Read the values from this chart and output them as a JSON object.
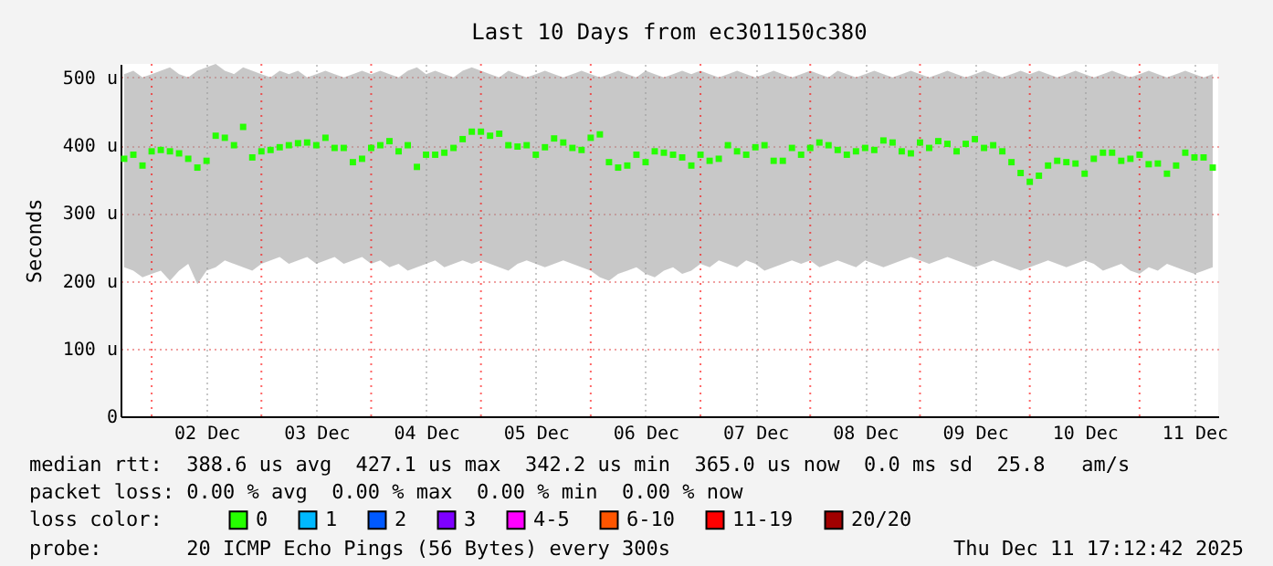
{
  "chart_data": {
    "type": "scatter",
    "title": "Last 10 Days from ec301150c380",
    "ylabel": "Seconds",
    "legend_title": "loss color:",
    "legend": "bottom",
    "marker": "square",
    "grid": true,
    "xlim": [
      "2025-12-01T17:12",
      "2025-12-11T17:12"
    ],
    "xticks": [
      {
        "value": "2025-12-02T12:00",
        "label": "02 Dec"
      },
      {
        "value": "2025-12-03T12:00",
        "label": "03 Dec"
      },
      {
        "value": "2025-12-04T12:00",
        "label": "04 Dec"
      },
      {
        "value": "2025-12-05T12:00",
        "label": "05 Dec"
      },
      {
        "value": "2025-12-06T12:00",
        "label": "06 Dec"
      },
      {
        "value": "2025-12-07T12:00",
        "label": "07 Dec"
      },
      {
        "value": "2025-12-08T12:00",
        "label": "08 Dec"
      },
      {
        "value": "2025-12-09T12:00",
        "label": "09 Dec"
      },
      {
        "value": "2025-12-10T12:00",
        "label": "10 Dec"
      },
      {
        "value": "2025-12-11T12:00",
        "label": "11 Dec"
      }
    ],
    "ylim": [
      0,
      520
    ],
    "yticks": [
      0,
      {
        "value": 100,
        "label": "100 u"
      },
      {
        "value": 200,
        "label": "200 u"
      },
      {
        "value": 300,
        "label": "300 u"
      },
      {
        "value": 400,
        "label": "400 u"
      },
      {
        "value": 500,
        "label": "500 u"
      }
    ],
    "x": [
      "2025-12-01T18:00",
      "2025-12-01T20:00",
      "2025-12-01T22:00",
      "2025-12-02T00:00",
      "2025-12-02T02:00",
      "2025-12-02T04:00",
      "2025-12-02T06:00",
      "2025-12-02T08:00",
      "2025-12-02T10:00",
      "2025-12-02T12:00",
      "2025-12-02T14:00",
      "2025-12-02T16:00",
      "2025-12-02T18:00",
      "2025-12-02T20:00",
      "2025-12-02T22:00",
      "2025-12-03T00:00",
      "2025-12-03T02:00",
      "2025-12-03T04:00",
      "2025-12-03T06:00",
      "2025-12-03T08:00",
      "2025-12-03T10:00",
      "2025-12-03T12:00",
      "2025-12-03T14:00",
      "2025-12-03T16:00",
      "2025-12-03T18:00",
      "2025-12-03T20:00",
      "2025-12-03T22:00",
      "2025-12-04T00:00",
      "2025-12-04T02:00",
      "2025-12-04T04:00",
      "2025-12-04T06:00",
      "2025-12-04T08:00",
      "2025-12-04T10:00",
      "2025-12-04T12:00",
      "2025-12-04T14:00",
      "2025-12-04T16:00",
      "2025-12-04T18:00",
      "2025-12-04T20:00",
      "2025-12-04T22:00",
      "2025-12-05T00:00",
      "2025-12-05T02:00",
      "2025-12-05T04:00",
      "2025-12-05T06:00",
      "2025-12-05T08:00",
      "2025-12-05T10:00",
      "2025-12-05T12:00",
      "2025-12-05T14:00",
      "2025-12-05T16:00",
      "2025-12-05T18:00",
      "2025-12-05T20:00",
      "2025-12-05T22:00",
      "2025-12-06T00:00",
      "2025-12-06T02:00",
      "2025-12-06T04:00",
      "2025-12-06T06:00",
      "2025-12-06T08:00",
      "2025-12-06T10:00",
      "2025-12-06T12:00",
      "2025-12-06T14:00",
      "2025-12-06T16:00",
      "2025-12-06T18:00",
      "2025-12-06T20:00",
      "2025-12-06T22:00",
      "2025-12-07T00:00",
      "2025-12-07T02:00",
      "2025-12-07T04:00",
      "2025-12-07T06:00",
      "2025-12-07T08:00",
      "2025-12-07T10:00",
      "2025-12-07T12:00",
      "2025-12-07T14:00",
      "2025-12-07T16:00",
      "2025-12-07T18:00",
      "2025-12-07T20:00",
      "2025-12-07T22:00",
      "2025-12-08T00:00",
      "2025-12-08T02:00",
      "2025-12-08T04:00",
      "2025-12-08T06:00",
      "2025-12-08T08:00",
      "2025-12-08T10:00",
      "2025-12-08T12:00",
      "2025-12-08T14:00",
      "2025-12-08T16:00",
      "2025-12-08T18:00",
      "2025-12-08T20:00",
      "2025-12-08T22:00",
      "2025-12-09T00:00",
      "2025-12-09T02:00",
      "2025-12-09T04:00",
      "2025-12-09T06:00",
      "2025-12-09T08:00",
      "2025-12-09T10:00",
      "2025-12-09T12:00",
      "2025-12-09T14:00",
      "2025-12-09T16:00",
      "2025-12-09T18:00",
      "2025-12-09T20:00",
      "2025-12-09T22:00",
      "2025-12-10T00:00",
      "2025-12-10T02:00",
      "2025-12-10T04:00",
      "2025-12-10T06:00",
      "2025-12-10T08:00",
      "2025-12-10T10:00",
      "2025-12-10T12:00",
      "2025-12-10T14:00",
      "2025-12-10T16:00",
      "2025-12-10T18:00",
      "2025-12-10T20:00",
      "2025-12-10T22:00",
      "2025-12-11T00:00",
      "2025-12-11T02:00",
      "2025-12-11T04:00",
      "2025-12-11T06:00",
      "2025-12-11T08:00",
      "2025-12-11T10:00",
      "2025-12-11T12:00",
      "2025-12-11T14:00",
      "2025-12-11T16:00"
    ],
    "series": [
      {
        "name": "0",
        "color": "#26ff00",
        "values": [
          380,
          386,
          370,
          391,
          393,
          391,
          388,
          380,
          367,
          377,
          414,
          411,
          400,
          427,
          382,
          391,
          393,
          397,
          400,
          403,
          404,
          400,
          411,
          396,
          396,
          375,
          380,
          396,
          400,
          406,
          391,
          400,
          368,
          386,
          386,
          389,
          396,
          409,
          420,
          420,
          414,
          417,
          400,
          398,
          400,
          386,
          397,
          410,
          404,
          396,
          393,
          411,
          416,
          375,
          367,
          370,
          386,
          375,
          391,
          389,
          386,
          382,
          370,
          386,
          377,
          380,
          400,
          391,
          386,
          397,
          400,
          377,
          377,
          396,
          386,
          396,
          404,
          400,
          393,
          386,
          391,
          396,
          393,
          407,
          404,
          391,
          388,
          404,
          396,
          406,
          402,
          391,
          402,
          409,
          396,
          400,
          391,
          375,
          359,
          346,
          355,
          370,
          377,
          375,
          373,
          358,
          380,
          389,
          389,
          377,
          380,
          386,
          372,
          373,
          358,
          370,
          389,
          382,
          382,
          367
        ],
        "lower": [
          220,
          215,
          205,
          210,
          215,
          200,
          215,
          225,
          195,
          215,
          220,
          230,
          225,
          220,
          215,
          225,
          230,
          235,
          225,
          230,
          235,
          225,
          230,
          235,
          225,
          230,
          235,
          225,
          230,
          220,
          225,
          215,
          220,
          225,
          230,
          220,
          225,
          230,
          225,
          230,
          225,
          220,
          215,
          225,
          230,
          225,
          220,
          225,
          230,
          225,
          220,
          215,
          205,
          200,
          210,
          215,
          220,
          210,
          205,
          215,
          220,
          210,
          215,
          225,
          220,
          230,
          225,
          220,
          230,
          225,
          215,
          220,
          225,
          230,
          225,
          230,
          220,
          225,
          230,
          225,
          220,
          230,
          225,
          220,
          225,
          230,
          235,
          230,
          225,
          230,
          235,
          230,
          225,
          220,
          225,
          230,
          225,
          220,
          215,
          220,
          225,
          230,
          225,
          220,
          225,
          230,
          225,
          215,
          220,
          225,
          215,
          210,
          220,
          215,
          225,
          220,
          215,
          210,
          215,
          220
        ],
        "upper": [
          505,
          510,
          500,
          505,
          510,
          515,
          505,
          500,
          510,
          515,
          520,
          510,
          505,
          515,
          510,
          505,
          500,
          510,
          505,
          510,
          500,
          505,
          510,
          505,
          500,
          505,
          510,
          505,
          510,
          505,
          500,
          510,
          515,
          505,
          510,
          505,
          500,
          510,
          515,
          510,
          505,
          500,
          510,
          505,
          500,
          505,
          510,
          505,
          500,
          505,
          510,
          505,
          500,
          505,
          510,
          505,
          500,
          510,
          505,
          500,
          505,
          510,
          505,
          510,
          505,
          500,
          505,
          510,
          505,
          500,
          505,
          510,
          505,
          500,
          505,
          510,
          505,
          500,
          510,
          505,
          500,
          505,
          510,
          505,
          500,
          505,
          510,
          505,
          500,
          505,
          510,
          505,
          500,
          505,
          510,
          505,
          500,
          505,
          510,
          505,
          510,
          505,
          500,
          505,
          510,
          505,
          500,
          505,
          510,
          505,
          500,
          505,
          510,
          505,
          500,
          505,
          510,
          505,
          500,
          505
        ]
      },
      {
        "name": "1",
        "color": "#00b8ff",
        "values": [
          null,
          null,
          null,
          null,
          null,
          null,
          null,
          null,
          null,
          null,
          null,
          null,
          null,
          null,
          null,
          null,
          null,
          null,
          null,
          null,
          null,
          null,
          null,
          null,
          null,
          null,
          null,
          null,
          null,
          null,
          null,
          null,
          null,
          null,
          null,
          null,
          null,
          null,
          null,
          null,
          null,
          null,
          null,
          null,
          null,
          null,
          null,
          null,
          null,
          null,
          null,
          null,
          null,
          null,
          null,
          null,
          null,
          null,
          null,
          null,
          null,
          null,
          null,
          null,
          null,
          null,
          null,
          null,
          null,
          null,
          null,
          null,
          null,
          null,
          null,
          null,
          null,
          null,
          null,
          null,
          null,
          null,
          null,
          null,
          null,
          null,
          null,
          null,
          null,
          null,
          null,
          null,
          null,
          null,
          null,
          null,
          null,
          null,
          null,
          null,
          null,
          null,
          null,
          null,
          null,
          null,
          null,
          null,
          null,
          null,
          null,
          null,
          null,
          null,
          null,
          null,
          null,
          null,
          null,
          null
        ]
      },
      {
        "name": "2",
        "color": "#0059ff",
        "values": [
          null,
          null,
          null,
          null,
          null,
          null,
          null,
          null,
          null,
          null,
          null,
          null,
          null,
          null,
          null,
          null,
          null,
          null,
          null,
          null,
          null,
          null,
          null,
          null,
          null,
          null,
          null,
          null,
          null,
          null,
          null,
          null,
          null,
          null,
          null,
          null,
          null,
          null,
          null,
          null,
          null,
          null,
          null,
          null,
          null,
          null,
          null,
          null,
          null,
          null,
          null,
          null,
          null,
          null,
          null,
          null,
          null,
          null,
          null,
          null,
          null,
          null,
          null,
          null,
          null,
          null,
          null,
          null,
          null,
          null,
          null,
          null,
          null,
          null,
          null,
          null,
          null,
          null,
          null,
          null,
          null,
          null,
          null,
          null,
          null,
          null,
          null,
          null,
          null,
          null,
          null,
          null,
          null,
          null,
          null,
          null,
          null,
          null,
          null,
          null,
          null,
          null,
          null,
          null,
          null,
          null,
          null,
          null,
          null,
          null,
          null,
          null,
          null,
          null,
          null,
          null,
          null,
          null,
          null,
          null
        ]
      },
      {
        "name": "3",
        "color": "#7e00ff",
        "values": [
          null,
          null,
          null,
          null,
          null,
          null,
          null,
          null,
          null,
          null,
          null,
          null,
          null,
          null,
          null,
          null,
          null,
          null,
          null,
          null,
          null,
          null,
          null,
          null,
          null,
          null,
          null,
          null,
          null,
          null,
          null,
          null,
          null,
          null,
          null,
          null,
          null,
          null,
          null,
          null,
          null,
          null,
          null,
          null,
          null,
          null,
          null,
          null,
          null,
          null,
          null,
          null,
          null,
          null,
          null,
          null,
          null,
          null,
          null,
          null,
          null,
          null,
          null,
          null,
          null,
          null,
          null,
          null,
          null,
          null,
          null,
          null,
          null,
          null,
          null,
          null,
          null,
          null,
          null,
          null,
          null,
          null,
          null,
          null,
          null,
          null,
          null,
          null,
          null,
          null,
          null,
          null,
          null,
          null,
          null,
          null,
          null,
          null,
          null,
          null,
          null,
          null,
          null,
          null,
          null,
          null,
          null,
          null,
          null,
          null,
          null,
          null,
          null,
          null,
          null,
          null,
          null,
          null,
          null,
          null
        ]
      },
      {
        "name": "4-5",
        "color": "#ff00ff",
        "values": [
          null,
          null,
          null,
          null,
          null,
          null,
          null,
          null,
          null,
          null,
          null,
          null,
          null,
          null,
          null,
          null,
          null,
          null,
          null,
          null,
          null,
          null,
          null,
          null,
          null,
          null,
          null,
          null,
          null,
          null,
          null,
          null,
          null,
          null,
          null,
          null,
          null,
          null,
          null,
          null,
          null,
          null,
          null,
          null,
          null,
          null,
          null,
          null,
          null,
          null,
          null,
          null,
          null,
          null,
          null,
          null,
          null,
          null,
          null,
          null,
          null,
          null,
          null,
          null,
          null,
          null,
          null,
          null,
          null,
          null,
          null,
          null,
          null,
          null,
          null,
          null,
          null,
          null,
          null,
          null,
          null,
          null,
          null,
          null,
          null,
          null,
          null,
          null,
          null,
          null,
          null,
          null,
          null,
          null,
          null,
          null,
          null,
          null,
          null,
          null,
          null,
          null,
          null,
          null,
          null,
          null,
          null,
          null,
          null,
          null,
          null,
          null,
          null,
          null,
          null,
          null,
          null,
          null,
          null,
          null
        ]
      },
      {
        "name": "6-10",
        "color": "#ff5500",
        "values": [
          null,
          null,
          null,
          null,
          null,
          null,
          null,
          null,
          null,
          null,
          null,
          null,
          null,
          null,
          null,
          null,
          null,
          null,
          null,
          null,
          null,
          null,
          null,
          null,
          null,
          null,
          null,
          null,
          null,
          null,
          null,
          null,
          null,
          null,
          null,
          null,
          null,
          null,
          null,
          null,
          null,
          null,
          null,
          null,
          null,
          null,
          null,
          null,
          null,
          null,
          null,
          null,
          null,
          null,
          null,
          null,
          null,
          null,
          null,
          null,
          null,
          null,
          null,
          null,
          null,
          null,
          null,
          null,
          null,
          null,
          null,
          null,
          null,
          null,
          null,
          null,
          null,
          null,
          null,
          null,
          null,
          null,
          null,
          null,
          null,
          null,
          null,
          null,
          null,
          null,
          null,
          null,
          null,
          null,
          null,
          null,
          null,
          null,
          null,
          null,
          null,
          null,
          null,
          null,
          null,
          null,
          null,
          null,
          null,
          null,
          null,
          null,
          null,
          null,
          null,
          null,
          null,
          null,
          null,
          null
        ]
      },
      {
        "name": "11-19",
        "color": "#ff0000",
        "values": [
          null,
          null,
          null,
          null,
          null,
          null,
          null,
          null,
          null,
          null,
          null,
          null,
          null,
          null,
          null,
          null,
          null,
          null,
          null,
          null,
          null,
          null,
          null,
          null,
          null,
          null,
          null,
          null,
          null,
          null,
          null,
          null,
          null,
          null,
          null,
          null,
          null,
          null,
          null,
          null,
          null,
          null,
          null,
          null,
          null,
          null,
          null,
          null,
          null,
          null,
          null,
          null,
          null,
          null,
          null,
          null,
          null,
          null,
          null,
          null,
          null,
          null,
          null,
          null,
          null,
          null,
          null,
          null,
          null,
          null,
          null,
          null,
          null,
          null,
          null,
          null,
          null,
          null,
          null,
          null,
          null,
          null,
          null,
          null,
          null,
          null,
          null,
          null,
          null,
          null,
          null,
          null,
          null,
          null,
          null,
          null,
          null,
          null,
          null,
          null,
          null,
          null,
          null,
          null,
          null,
          null,
          null,
          null,
          null,
          null,
          null,
          null,
          null,
          null,
          null,
          null,
          null,
          null,
          null,
          null
        ]
      },
      {
        "name": "20/20",
        "color": "#a10000",
        "values": [
          null,
          null,
          null,
          null,
          null,
          null,
          null,
          null,
          null,
          null,
          null,
          null,
          null,
          null,
          null,
          null,
          null,
          null,
          null,
          null,
          null,
          null,
          null,
          null,
          null,
          null,
          null,
          null,
          null,
          null,
          null,
          null,
          null,
          null,
          null,
          null,
          null,
          null,
          null,
          null,
          null,
          null,
          null,
          null,
          null,
          null,
          null,
          null,
          null,
          null,
          null,
          null,
          null,
          null,
          null,
          null,
          null,
          null,
          null,
          null,
          null,
          null,
          null,
          null,
          null,
          null,
          null,
          null,
          null,
          null,
          null,
          null,
          null,
          null,
          null,
          null,
          null,
          null,
          null,
          null,
          null,
          null,
          null,
          null,
          null,
          null,
          null,
          null,
          null,
          null,
          null,
          null,
          null,
          null,
          null,
          null,
          null,
          null,
          null,
          null,
          null,
          null,
          null,
          null,
          null,
          null,
          null,
          null,
          null,
          null,
          null,
          null,
          null,
          null,
          null,
          null,
          null,
          null,
          null,
          null
        ]
      }
    ],
    "ref_lines": [
      {
        "axis": "x",
        "value": "2025-12-02T00:00",
        "color": "#ff0000",
        "line_style": "dotted"
      },
      {
        "axis": "x",
        "value": "2025-12-03T00:00",
        "color": "#ff0000",
        "line_style": "dotted"
      },
      {
        "axis": "x",
        "value": "2025-12-04T00:00",
        "color": "#ff0000",
        "line_style": "dotted"
      },
      {
        "axis": "x",
        "value": "2025-12-05T00:00",
        "color": "#ff0000",
        "line_style": "dotted"
      },
      {
        "axis": "x",
        "value": "2025-12-06T00:00",
        "color": "#ff0000",
        "line_style": "dotted"
      },
      {
        "axis": "x",
        "value": "2025-12-07T00:00",
        "color": "#ff0000",
        "line_style": "dotted"
      },
      {
        "axis": "x",
        "value": "2025-12-08T00:00",
        "color": "#ff0000",
        "line_style": "dotted"
      },
      {
        "axis": "x",
        "value": "2025-12-09T00:00",
        "color": "#ff0000",
        "line_style": "dotted"
      },
      {
        "axis": "x",
        "value": "2025-12-10T00:00",
        "color": "#ff0000",
        "line_style": "dotted"
      },
      {
        "axis": "x",
        "value": "2025-12-11T00:00",
        "color": "#ff0000",
        "line_style": "dotted"
      }
    ],
    "annotations": [
      "median rtt:  388.6 us avg  427.1 us max  342.2 us min  365.0 us now  0.0 ms sd  25.8   am/s",
      "packet loss: 0.00 % avg  0.00 % max  0.00 % min  0.00 % now",
      "probe:       20 ICMP Echo Pings (56 Bytes) every 300s",
      "Thu Dec 11 17:12:42 2025"
    ]
  }
}
